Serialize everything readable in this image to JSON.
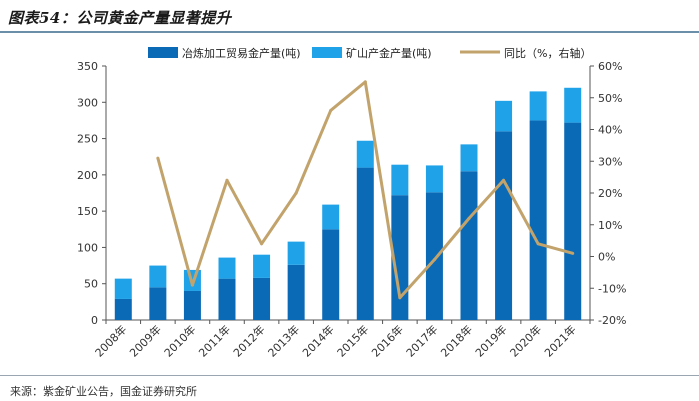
{
  "figure_title": "图表54：公司黄金产量显著提升",
  "source": "来源：紫金矿业公告，国金证券研究所",
  "chart_data": {
    "type": "bar",
    "stacked": true,
    "categories": [
      "2008年",
      "2009年",
      "2010年",
      "2011年",
      "2012年",
      "2013年",
      "2014年",
      "2015年",
      "2016年",
      "2017年",
      "2018年",
      "2019年",
      "2020年",
      "2021年"
    ],
    "series": [
      {
        "name": "冶炼加工贸易金产量(吨)",
        "kind": "bar",
        "axis": "left",
        "color": "#0b6ab5",
        "values": [
          29,
          45,
          40,
          57,
          58,
          76,
          125,
          210,
          172,
          176,
          205,
          260,
          275,
          272
        ]
      },
      {
        "name": "矿山产金产量(吨)",
        "kind": "bar",
        "axis": "left",
        "color": "#1fa2e8",
        "values": [
          28,
          30,
          29,
          29,
          32,
          32,
          34,
          37,
          42,
          37,
          37,
          42,
          40,
          48
        ]
      },
      {
        "name": "同比（%，右轴）",
        "kind": "line",
        "axis": "right",
        "color": "#c2a36b",
        "values": [
          null,
          31,
          -9,
          24,
          4,
          20,
          46,
          55,
          -13,
          -1,
          12,
          24,
          4,
          1
        ]
      }
    ],
    "left_axis": {
      "min": 0,
      "max": 350,
      "step": 50,
      "ticks": [
        "0",
        "50",
        "100",
        "150",
        "200",
        "250",
        "300",
        "350"
      ]
    },
    "right_axis": {
      "min": -20,
      "max": 60,
      "step": 10,
      "ticks": [
        "-20%",
        "-10%",
        "0%",
        "10%",
        "20%",
        "30%",
        "40%",
        "50%",
        "60%"
      ]
    },
    "legend_position": "top",
    "grid": false
  }
}
